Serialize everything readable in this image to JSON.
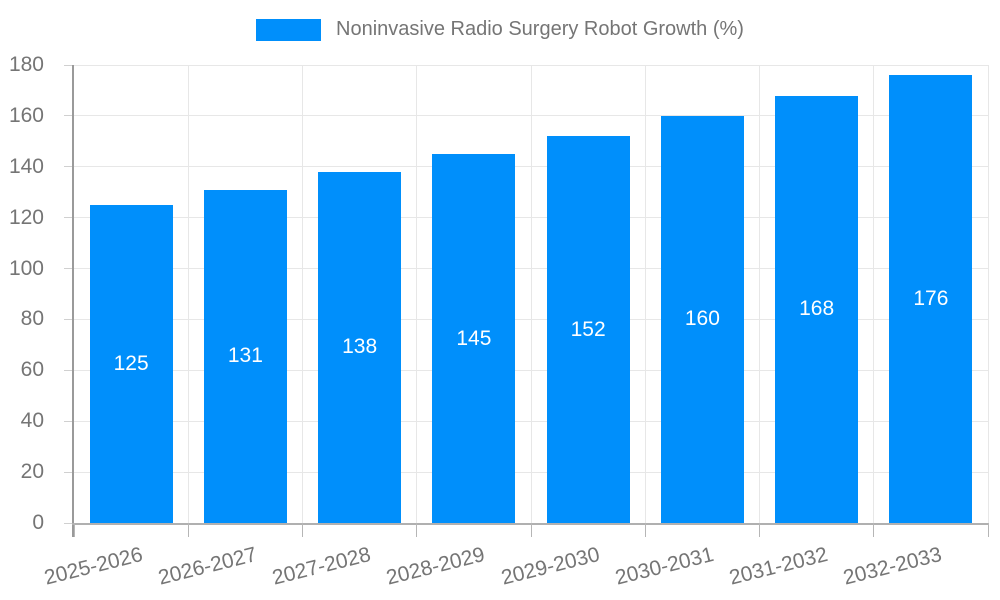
{
  "legend": {
    "label": "Noninvasive Radio Surgery Robot Growth (%)",
    "swatch_color": "#008FFB"
  },
  "chart_data": {
    "type": "bar",
    "title": "Noninvasive Radio Surgery Robot Growth (%)",
    "categories": [
      "2025-2026",
      "2026-2027",
      "2027-2028",
      "2028-2029",
      "2029-2030",
      "2030-2031",
      "2031-2032",
      "2032-2033"
    ],
    "series": [
      {
        "name": "Noninvasive Radio Surgery Robot Growth (%)",
        "values": [
          125,
          131,
          138,
          145,
          152,
          160,
          168,
          176
        ]
      }
    ],
    "data_labels": [
      "125",
      "131",
      "138",
      "145",
      "152",
      "160",
      "168",
      "176"
    ],
    "xlabel": "",
    "ylabel": "",
    "ylim": [
      0,
      180
    ],
    "ytick_step": 20,
    "yticks": [
      "0",
      "20",
      "40",
      "60",
      "80",
      "100",
      "120",
      "140",
      "160",
      "180"
    ],
    "grid": true,
    "legend_position": "top-center",
    "x_label_rotation": -14,
    "colors": {
      "bar": "#008FFB",
      "axis_label": "#757575",
      "grid_line": "#e7e7e7",
      "y_axis_line": "#9a9a9a",
      "x_axis_line": "#b0b0b0",
      "value_label": "#ffffff",
      "background": "#ffffff"
    }
  }
}
